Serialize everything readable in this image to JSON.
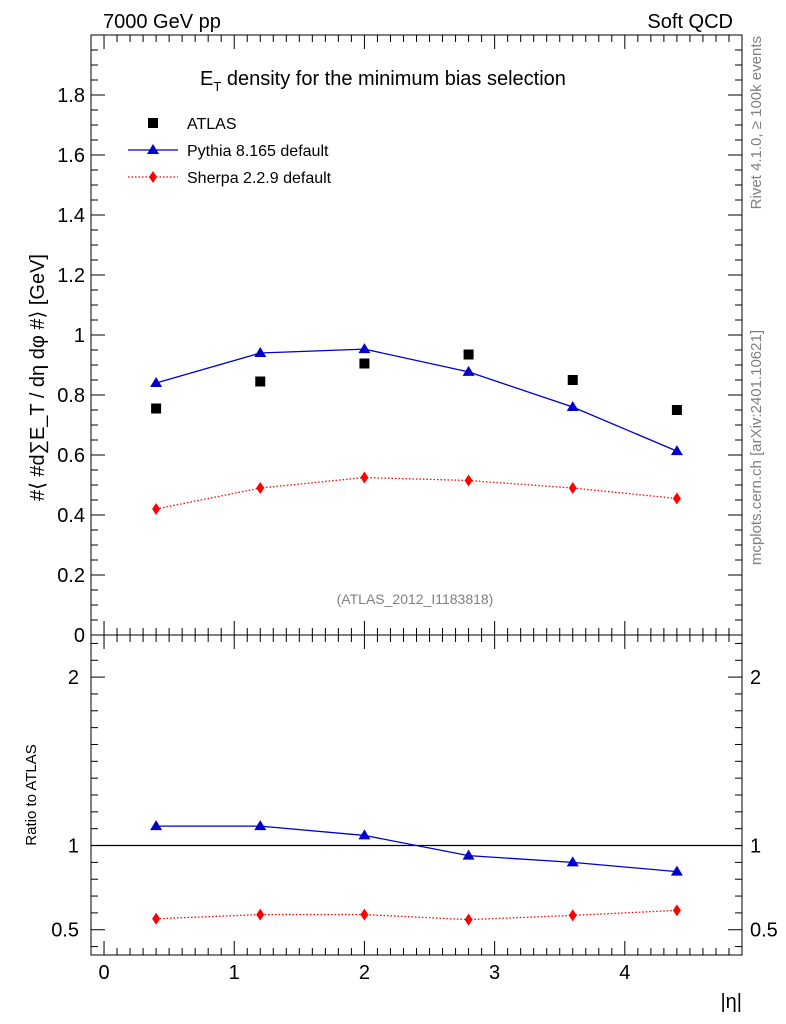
{
  "header": {
    "left": "7000 GeV pp",
    "right": "Soft QCD"
  },
  "side_labels": {
    "rivet": "Rivet 4.1.0, ≥ 100k events",
    "mcplots": "mcplots.cern.ch [arXiv:2401.10621]"
  },
  "chart_data": [
    {
      "type": "scatter",
      "panel": "main",
      "title": {
        "main": "E",
        "sub": "T",
        "rest": " density  for the minimum bias selection"
      },
      "ylabel": "#⟨ #d∑E_T / dη dφ #⟩ [GeV]",
      "analysis_id": "(ATLAS_2012_I1183818)",
      "xlim": [
        -0.1,
        4.9
      ],
      "ylim": [
        0,
        2.0
      ],
      "yticks": [
        0,
        0.2,
        0.4,
        0.6,
        0.8,
        1,
        1.2,
        1.4,
        1.6,
        1.8
      ],
      "ytick_labels": [
        "0",
        "0.2",
        "0.4",
        "0.6",
        "0.8",
        "1",
        "1.2",
        "1.4",
        "1.6",
        "1.8"
      ],
      "x": [
        0.4,
        1.2,
        2.0,
        2.8,
        3.6,
        4.4
      ],
      "legend_position": "top-left",
      "series": [
        {
          "name": "ATLAS",
          "color": "#000000",
          "marker": "square",
          "line": "none",
          "values": [
            0.755,
            0.845,
            0.905,
            0.935,
            0.85,
            0.75
          ]
        },
        {
          "name": "Pythia 8.165 default",
          "color": "#0000cc",
          "marker": "triangle",
          "line": "solid",
          "values": [
            0.84,
            0.94,
            0.953,
            0.877,
            0.76,
            0.613
          ]
        },
        {
          "name": "Sherpa 2.2.9 default",
          "color": "#ff0000",
          "marker": "diamond",
          "line": "dotted",
          "values": [
            0.42,
            0.49,
            0.525,
            0.515,
            0.49,
            0.455
          ]
        }
      ]
    },
    {
      "type": "line",
      "panel": "ratio",
      "ylabel": "Ratio to ATLAS",
      "xlabel": "|η|",
      "xlim": [
        -0.1,
        4.9
      ],
      "ylim": [
        0.35,
        2.25
      ],
      "yticks": [
        0.5,
        1,
        2
      ],
      "ytick_labels": [
        "0.5",
        "1",
        "2"
      ],
      "xticks": [
        0,
        1,
        2,
        3,
        4
      ],
      "xtick_labels": [
        "0",
        "1",
        "2",
        "3",
        "4"
      ],
      "reference_line": 1,
      "x": [
        0.4,
        1.2,
        2.0,
        2.8,
        3.6,
        4.4
      ],
      "series": [
        {
          "name": "Pythia 8.165 default",
          "color": "#0000cc",
          "marker": "triangle",
          "line": "solid",
          "values": [
            1.115,
            1.115,
            1.06,
            0.94,
            0.9,
            0.845
          ]
        },
        {
          "name": "Sherpa 2.2.9 default",
          "color": "#ff0000",
          "marker": "diamond",
          "line": "dotted",
          "values": [
            0.565,
            0.59,
            0.59,
            0.56,
            0.585,
            0.615
          ]
        }
      ]
    }
  ]
}
